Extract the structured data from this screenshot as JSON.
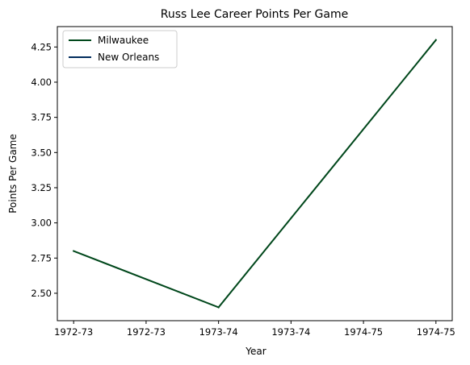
{
  "chart_data": {
    "type": "line",
    "title": "Russ Lee Career Points Per Game",
    "xlabel": "Year",
    "ylabel": "Points Per Game",
    "x_tick_labels": [
      "1972-73",
      "1972-73",
      "1973-74",
      "1973-74",
      "1974-75",
      "1974-75"
    ],
    "x_tick_values": [
      0,
      0.5,
      1,
      1.5,
      2,
      2.5
    ],
    "xlim": [
      -0.1125,
      2.6125
    ],
    "y_ticks": [
      2.5,
      2.75,
      3.0,
      3.25,
      3.5,
      3.75,
      4.0,
      4.25
    ],
    "y_tick_labels": [
      "2.50",
      "2.75",
      "3.00",
      "3.25",
      "3.50",
      "3.75",
      "4.00",
      "4.25"
    ],
    "ylim": [
      2.305,
      4.395
    ],
    "grid": false,
    "legend_position": "top-left",
    "series": [
      {
        "name": "Milwaukee",
        "color": "#00471B",
        "x": [
          0,
          1,
          2
        ],
        "values": [
          2.8,
          2.4,
          null
        ]
      },
      {
        "name": "New Orleans",
        "color": "#002B5C",
        "x": [
          1,
          2
        ],
        "values": [
          null,
          null
        ]
      },
      {
        "name": "Milwaukee",
        "color": "#00471B",
        "x": [
          1,
          2.5
        ],
        "values": [
          2.4,
          4.3
        ],
        "legend": false
      }
    ],
    "points": [
      {
        "season": "1972-73",
        "team": "Milwaukee",
        "ppg": 2.8
      },
      {
        "season": "1973-74",
        "team": "Milwaukee",
        "ppg": 2.4
      },
      {
        "season": "1974-75",
        "team": "Milwaukee",
        "ppg": 4.3
      }
    ]
  }
}
